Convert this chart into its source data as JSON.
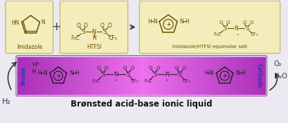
{
  "bg_color": "#ede9f2",
  "top_box_color": "#f2edbb",
  "top_box_edge": "#c8b870",
  "anode_color": "#3535bb",
  "cathode_color": "#3535bb",
  "title": "Brønsted acid-base ionic liquid",
  "title_fontsize": 8.5,
  "imidazole_label": "Imidazole",
  "htfsi_label": "HTFSI",
  "salt_label": "Imidazole/HTFSI equimolar salt",
  "h2_label": "H₂",
  "h2o_label": "H₂O",
  "o2_label": "O₂",
  "anode_label": "Anode",
  "cathode_label": "Cathode",
  "struct_color": "#6b4c00",
  "bar_purple": "#b060b8",
  "bar_pink": "#e890e8",
  "bar_edge": "#9966aa",
  "fig_width": 4.16,
  "fig_height": 1.79,
  "dpi": 100
}
